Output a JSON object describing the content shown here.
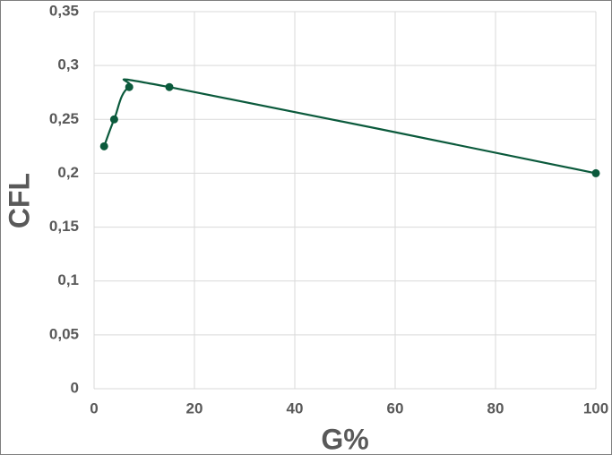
{
  "chart_data": {
    "type": "line",
    "smooth": true,
    "markers": true,
    "color": "#0b5a3c",
    "x": [
      2,
      4,
      7,
      15,
      100
    ],
    "values": [
      0.225,
      0.25,
      0.28,
      0.28,
      0.2
    ],
    "xlabel": "G%",
    "ylabel": "CFL",
    "xlim": [
      0,
      100
    ],
    "xticks": [
      0,
      20,
      40,
      60,
      80,
      100
    ],
    "ylim": [
      0,
      0.35
    ],
    "yticks": [
      0,
      {
        "value": 0.05,
        "label": "0,05"
      },
      {
        "value": 0.1,
        "label": "0,1"
      },
      {
        "value": 0.15,
        "label": "0,15"
      },
      {
        "value": 0.2,
        "label": "0,2"
      },
      {
        "value": 0.25,
        "label": "0,25"
      },
      {
        "value": 0.3,
        "label": "0,3"
      },
      {
        "value": 0.35,
        "label": "0,35"
      }
    ],
    "grid": true
  }
}
